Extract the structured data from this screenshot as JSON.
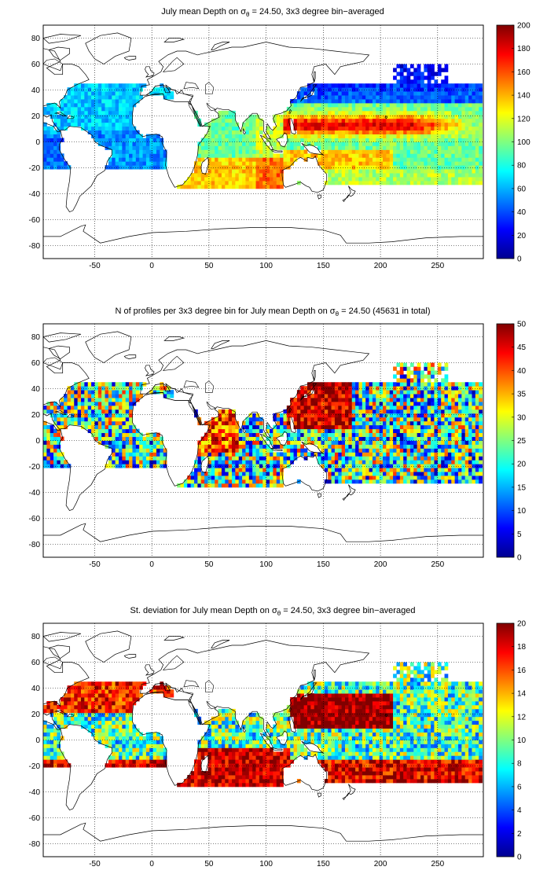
{
  "figure": {
    "panels": [
      {
        "title_prefix": "July mean Depth on ",
        "sigma": "σ",
        "sub": "θ",
        "title_suffix": " = 24.50, 3x3 degree bin−averaged",
        "colorbar": {
          "min": 0,
          "max": 200,
          "ticks": [
            "0",
            "20",
            "40",
            "60",
            "80",
            "100",
            "120",
            "140",
            "160",
            "180",
            "200"
          ]
        },
        "field": "depth"
      },
      {
        "title_prefix": "N of profiles per 3x3 degree bin for July mean Depth on ",
        "sigma": "σ",
        "sub": "θ",
        "title_suffix": " = 24.50 (45631 in total)",
        "colorbar": {
          "min": 0,
          "max": 50,
          "ticks": [
            "0",
            "5",
            "10",
            "15",
            "20",
            "25",
            "30",
            "35",
            "40",
            "45",
            "50"
          ]
        },
        "field": "count"
      },
      {
        "title_prefix": "St. deviation for July mean Depth on ",
        "sigma": "σ",
        "sub": "θ",
        "title_suffix": " = 24.50, 3x3 degree bin−averaged",
        "colorbar": {
          "min": 0,
          "max": 20,
          "ticks": [
            "0",
            "2",
            "4",
            "6",
            "8",
            "10",
            "12",
            "14",
            "16",
            "18",
            "20"
          ]
        },
        "field": "std"
      }
    ],
    "x_ticks": [
      "-50",
      "0",
      "50",
      "100",
      "150",
      "200",
      "250"
    ],
    "y_ticks": [
      "80",
      "60",
      "40",
      "20",
      "0",
      "-20",
      "-40",
      "-60",
      "-80"
    ],
    "x_range": [
      -95,
      290
    ],
    "y_range": [
      -90,
      90
    ],
    "grid": "dotted",
    "colormap": "jet"
  }
}
